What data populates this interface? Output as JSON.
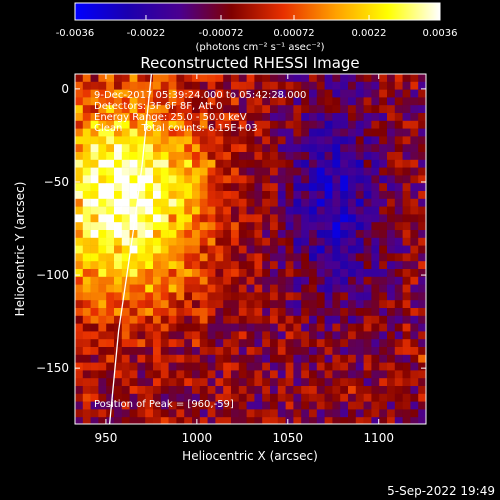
{
  "colorbar": {
    "tick_labels": [
      "-0.0036",
      "-0.0022",
      "-0.00072",
      "0.00072",
      "0.0022",
      "0.0036"
    ],
    "tick_values": [
      -0.0036,
      -0.0022,
      -0.00072,
      0.00072,
      0.0022,
      0.0036
    ],
    "range": [
      -0.0036,
      0.0036
    ],
    "units": "(photons cm⁻² s⁻¹ asec⁻²)",
    "colors": [
      "#0000ff",
      "#1a00b0",
      "#4a0090",
      "#800000",
      "#e83000",
      "#ffa000",
      "#ffff00",
      "#ffffff"
    ]
  },
  "chart_data": {
    "type": "heatmap",
    "title": "Reconstructed RHESSI Image",
    "xlabel": "Heliocentric X (arcsec)",
    "ylabel": "Heliocentric Y (arcsec)",
    "xlim": [
      933,
      1126
    ],
    "ylim": [
      -180,
      8
    ],
    "x_ticks": [
      950,
      1000,
      1050,
      1100
    ],
    "x_tick_labels": [
      "950",
      "1000",
      "1050",
      "1100"
    ],
    "y_ticks": [
      0,
      -50,
      -100,
      -150
    ],
    "y_tick_labels": [
      "0",
      "−50",
      "−100",
      "−150"
    ],
    "annotations": [
      "9-Dec-2017 05:39:24.000 to 05:42:28.000",
      "Detectors: 3F 6F 8F, Att 0",
      "Energy Range: 25.0 - 50.0 keV",
      "Clean      Total counts: 6.15E+03"
    ],
    "peak_label": "Position of Peak = [960,-59]",
    "peak": [
      960,
      -59
    ],
    "limb_curve": [
      [
        975,
        8
      ],
      [
        970,
        -40
      ],
      [
        966,
        -70
      ],
      [
        963,
        -90
      ],
      [
        960,
        -110
      ],
      [
        957,
        -130
      ],
      [
        955,
        -150
      ],
      [
        953,
        -170
      ],
      [
        952,
        -180
      ]
    ]
  },
  "footer": {
    "date": "5-Sep-2022 19:49"
  }
}
